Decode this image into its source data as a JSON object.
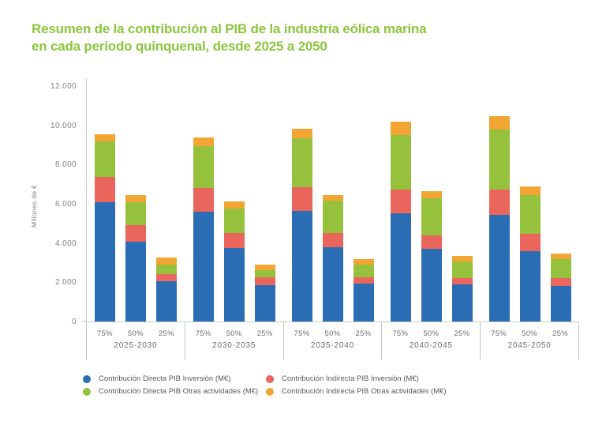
{
  "header": {
    "title": "Resumen de la contribución al PIB de la industria eólica marina\nen cada periodo quinquenal, desde 2025 a 2050",
    "title_color": "#8cc63e"
  },
  "chart_data": {
    "type": "bar",
    "variant": "stacked",
    "title": "Resumen de la contribución al PIB de la industria eólica marina en cada periodo quinquenal, desde 2025 a 2050",
    "xlabel": "",
    "ylabel": "Millones de €",
    "ylim": [
      0,
      12000
    ],
    "grid": false,
    "legend_position": "bottom",
    "y_ticks": [
      "12.000",
      "10.000",
      "8.000",
      "6.000",
      "4.000",
      "2.000",
      "0"
    ],
    "bar_labels": [
      "75%",
      "50%",
      "25%"
    ],
    "stack_order_note": "values arrays are bottom-to-top following series order",
    "series": [
      {
        "key": "directa-pib-inversion",
        "label": "Contribución Directa PIB Inversión (M€)",
        "color": "#2a6db5"
      },
      {
        "key": "indirecta-pib-inversion",
        "label": "Contribución Indirecta PIB Inversión (M€)",
        "color": "#ea655c"
      },
      {
        "key": "directa-pib-otras",
        "label": "Contribución Directa PIB Otras actividades (M€)",
        "color": "#96c13c"
      },
      {
        "key": "indirecta-pib-otras",
        "label": "Contribución Indirecta PIB Otras actividades (M€)",
        "color": "#f2a533"
      }
    ],
    "groups": [
      {
        "period": "2025-2030",
        "bars": [
          {
            "label": "75%",
            "values": [
              6100,
              1300,
              1800,
              380
            ]
          },
          {
            "label": "50%",
            "values": [
              4050,
              850,
              1150,
              380
            ]
          },
          {
            "label": "25%",
            "values": [
              2050,
              350,
              480,
              350
            ]
          }
        ]
      },
      {
        "period": "2030-2035",
        "bars": [
          {
            "label": "75%",
            "values": [
              5600,
              1200,
              2150,
              450
            ]
          },
          {
            "label": "50%",
            "values": [
              3750,
              750,
              1250,
              350
            ]
          },
          {
            "label": "25%",
            "values": [
              1850,
              400,
              380,
              270
            ]
          }
        ]
      },
      {
        "period": "2035-2040",
        "bars": [
          {
            "label": "75%",
            "values": [
              5650,
              1200,
              2500,
              500
            ]
          },
          {
            "label": "50%",
            "values": [
              3770,
              740,
              1640,
              300
            ]
          },
          {
            "label": "25%",
            "values": [
              1950,
              340,
              630,
              300
            ]
          }
        ]
      },
      {
        "period": "2040-2045",
        "bars": [
          {
            "label": "75%",
            "values": [
              5500,
              1200,
              2760,
              670
            ]
          },
          {
            "label": "50%",
            "values": [
              3700,
              700,
              1890,
              375
            ]
          },
          {
            "label": "25%",
            "values": [
              1890,
              310,
              840,
              290
            ]
          }
        ]
      },
      {
        "period": "2045-2050",
        "bars": [
          {
            "label": "75%",
            "values": [
              5450,
              1280,
              3050,
              700
            ]
          },
          {
            "label": "50%",
            "values": [
              3570,
              900,
              1980,
              430
            ]
          },
          {
            "label": "25%",
            "values": [
              1820,
              400,
              980,
              270
            ]
          }
        ]
      }
    ]
  }
}
